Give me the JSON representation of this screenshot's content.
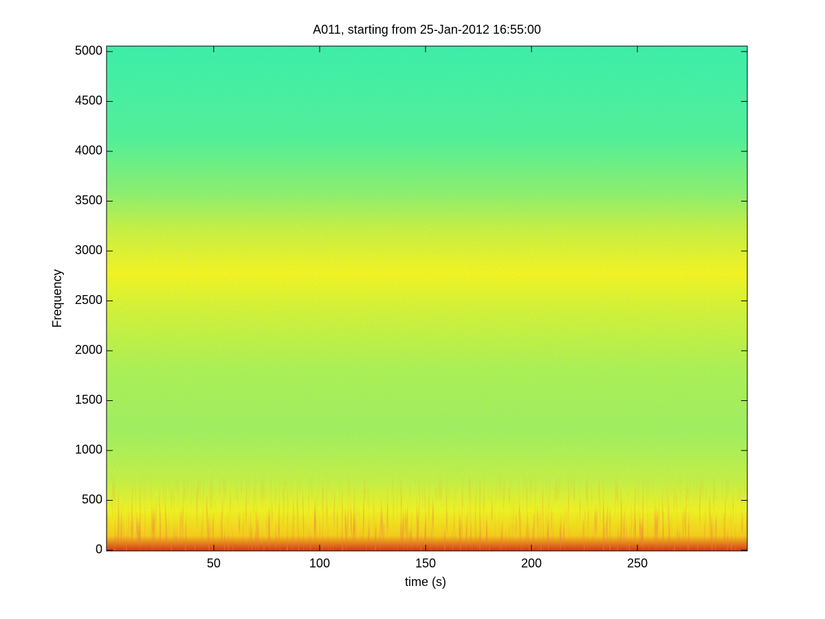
{
  "chart_data": {
    "type": "spectrogram",
    "title": "A011, starting from 25-Jan-2012 16:55:00",
    "xlabel": "time (s)",
    "ylabel": "Frequency",
    "xlim": [
      -0.6,
      301.9
    ],
    "ylim": [
      -7,
      5055
    ],
    "xticks": [
      50,
      100,
      150,
      200,
      250
    ],
    "yticks": [
      0,
      500,
      1000,
      1500,
      2000,
      2500,
      3000,
      3500,
      4000,
      4500,
      5000
    ],
    "colormap": "jet"
  }
}
